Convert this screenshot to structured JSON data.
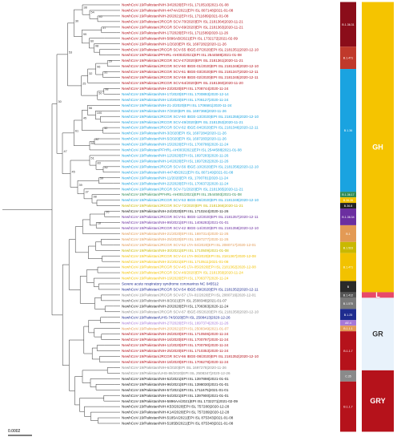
{
  "figure": {
    "scale_bar_label": "0.0002"
  },
  "colors": {
    "red": "#b5121b",
    "blue": "#1aa3e0",
    "navy": "#1f2c8f",
    "orange": "#e39a55",
    "gold": "#f2c200",
    "magenta": "#c23fb5",
    "black": "#1a1a1a",
    "gray": "#888888",
    "darkred": "#8b0d1a",
    "greenband": "#2e8b57"
  },
  "clade_bar": [
    {
      "label": "B.1.36.31",
      "start": 0,
      "end": 8,
      "color": "#8b0d1a"
    },
    {
      "label": "B.1.471",
      "start": 8,
      "end": 12,
      "color": "#c0392b"
    },
    {
      "label": "B.1.36",
      "start": 12,
      "end": 34,
      "color": "#1aa3e0"
    },
    {
      "label": "B.1.36.17",
      "start": 34,
      "end": 35,
      "color": "#2e8b57"
    },
    {
      "label": "B.36.26",
      "start": 35,
      "end": 36,
      "color": "#f2c200"
    },
    {
      "label": "B.36.8",
      "start": 36,
      "end": 37,
      "color": "#222222"
    },
    {
      "label": "B.1.36.34",
      "start": 37,
      "end": 40,
      "color": "#6b2fa0"
    },
    {
      "label": "B.1",
      "start": 40,
      "end": 43,
      "color": "#e39a55"
    },
    {
      "label": "B.1.523",
      "start": 43,
      "end": 45,
      "color": "#c9b800"
    },
    {
      "label": "B.1.471",
      "start": 45,
      "end": 50,
      "color": "#f2c200"
    },
    {
      "label": "B",
      "start": 50,
      "end": 52,
      "color": "#2a2a2a"
    },
    {
      "label": "B.1.412",
      "start": 52,
      "end": 53,
      "color": "#555555"
    },
    {
      "label": "B.1.575",
      "start": 53,
      "end": 55,
      "color": "#7a7a7a"
    },
    {
      "label": "B.1.25",
      "start": 55,
      "end": 57,
      "color": "#1f2c8f"
    },
    {
      "label": "AE.4",
      "start": 57,
      "end": 58,
      "color": "#a678d8"
    },
    {
      "label": "B.1.1.1",
      "start": 58,
      "end": 59,
      "color": "#e39a55"
    },
    {
      "label": "B.1.1.7",
      "start": 59,
      "end": 66,
      "color": "#b5121b"
    },
    {
      "label": "C.35",
      "start": 66,
      "end": 68,
      "color": "#8a8a8a"
    },
    {
      "label": "B.1.1.7",
      "start": 68,
      "end": 77,
      "color": "#b5121b"
    }
  ],
  "clade_groups": [
    {
      "label": "GH",
      "start": 0,
      "end": 52,
      "color": "#f5c400"
    },
    {
      "label": "L",
      "start": 52,
      "end": 53,
      "color": "#e84a6a"
    },
    {
      "label": "GR",
      "start": 53,
      "end": 66,
      "color": "#e8f2fb"
    },
    {
      "label": "GRY",
      "start": 66,
      "end": 77,
      "color": "#b5121b"
    }
  ],
  "leaves": [
    {
      "label": "NewhCoV-19/Pakistan/NIH-34/2020|EPI ISL 1710510|2021-01-08",
      "color": "#b5121b"
    },
    {
      "label": "NewhCoV-19/Pakistan/NIH-4474A/2021|EPI ISL 807148|2021-01-08",
      "color": "#b5121b"
    },
    {
      "label": "NewhCoV-19/Pakistan/NIH-26/2021|EPI ISL 1711689|2021-01-08",
      "color": "#b5121b"
    },
    {
      "label": "NewhCoV-19/Pakistan/JRCGR SCV-70/2020|EPI ISL 2181364|2020-11-21",
      "color": "#b5121b"
    },
    {
      "label": "NewhCoV-19/Pakistan/JRCGR SCV-69/2020|EPI ISL 2181363|2020-11-21",
      "color": "#b5121b"
    },
    {
      "label": "NewhCoV-19/Pakistan/NIH-17/2020|EPI ISL 1711589|2020-11-26",
      "color": "#b5121b"
    },
    {
      "label": "NewhCoV-19/Pakistan/NIH-5896AB/2021|EPI ISL 1732172|2021-02-09",
      "color": "#b5121b"
    },
    {
      "label": "NewhCoV-19/Pakistan/NIH-1/2020|EPI ISL 1697282|2020-11-26",
      "color": "#b5121b"
    },
    {
      "label": "NewhCoV-19/Pakistan/JRCGR SCV-55 IBGE-07/2020|EPI ISL 2181351|2020-12-10",
      "color": "#b5121b"
    },
    {
      "label": "NewhCoV-19/Pakistan/PFHRL-AH003/2021|EPI ISL 2544589|2021-01-08",
      "color": "#b5121b"
    },
    {
      "label": "NewhCoV-19/Pakistan/JRCGR SCV-47/2020|EPI ISL 2181361|2020-11-21",
      "color": "#b5121b"
    },
    {
      "label": "NewhCoV-19/Pakistan/JRCGR SCV-60 IBGE-01/2020|EPI ISL 2181348|2020-12-10",
      "color": "#b5121b"
    },
    {
      "label": "NewhCoV-19/Pakistan/JRCGR SCV-61 IBGE-03/2020|EPI ISL 2181347|2020-12-11",
      "color": "#b5121b"
    },
    {
      "label": "NewhCoV-19/Pakistan/JRCGR SCV-59 IBGE-02/2020|EPI ISL 2181345|2020-12-11",
      "color": "#b5121b"
    },
    {
      "label": "NewhCoV-19/Pakistan/JRCGR SCV-64/2020|EPI ISL 2181360|2020-11-20",
      "color": "#b5121b"
    },
    {
      "label": "NewhCoV-19/Pakistan/NIH-23/2020|EPI ISL 1708744|2020-11-24",
      "color": "#b5121b"
    },
    {
      "label": "NewhCoV-19/Pakistan/NIH-17/2020|EPI ISL 1700893|2020-12-14",
      "color": "#1aa3e0"
    },
    {
      "label": "NewhCoV-19/Pakistan/NIH-13/2020|EPI ISL 1706127|2020-11-24",
      "color": "#1aa3e0"
    },
    {
      "label": "NewhCoV-19/Pakistan/NIH-21-2/2020|EPI ISL 1706581|2020-11-24",
      "color": "#1aa3e0"
    },
    {
      "label": "NewhCoV-19/Pakistan/NIH-7/2020|EPI ISL 1697368|2020-11-26",
      "color": "#1aa3e0"
    },
    {
      "label": "NewhCoV-19/Pakistan/JRCGR SCV-60 IBGE-13/2020|EPI ISL 2181355|2020-12-10",
      "color": "#1aa3e0"
    },
    {
      "label": "NewhCoV-19/Pakistan/JRCGR SCV-49/2020|EPI ISL 2181353|2020-11-21",
      "color": "#1aa3e0"
    },
    {
      "label": "NewhCoV-19/Pakistan/JRCGR SCV-62 IBGE-04/2020|EPI ISL 2181346|2020-12-11",
      "color": "#1aa3e0"
    },
    {
      "label": "NewhCoV-19/Pakistan/NIH-3/2020|EPI ISL 1697284|2020-11-26",
      "color": "#1aa3e0"
    },
    {
      "label": "NewhCoV-19/Pakistan/NIH-5/2020|EPI ISL 1697283|2020-11-26",
      "color": "#1aa3e0"
    },
    {
      "label": "NewhCoV-19/Pakistan/NIH-15/2020|EPI ISL 1700786|2020-11-24",
      "color": "#1aa3e0"
    },
    {
      "label": "NewhCoV-19/Pakistan/PFHRL-AH003/2021|EPI ISL 2544588|2021-01-08",
      "color": "#1aa3e0"
    },
    {
      "label": "NewhCoV-19/Pakistan/NIH-12/2020|EPI ISL 1697283|2020-11-26",
      "color": "#1aa3e0"
    },
    {
      "label": "NewhCoV-19/Pakistan/NIH-14/2020|EPI ISL 1697282|2020-11-26",
      "color": "#1aa3e0"
    },
    {
      "label": "NewhCoV-19/Pakistan/JRCGR SCV-56 IBGE-10/2020|EPI ISL 2181356|2020-12-10",
      "color": "#1aa3e0"
    },
    {
      "label": "NewhCoV-19/Pakistan/NIH-4474B/2021|EPI ISL 807149|2021-01-08",
      "color": "#1aa3e0"
    },
    {
      "label": "NewhCoV-19/Pakistan/NIH-11/2020|EPI ISL 1700781|2020-11-24",
      "color": "#1aa3e0"
    },
    {
      "label": "NewhCoV-19/Pakistan/NIH-22/2020|EPI ISL 1706372|2020-11-24",
      "color": "#1aa3e0"
    },
    {
      "label": "NewhCoV-19/Pakistan/JRCGR SCV-71/2020|EPI ISL 2181365|2020-11-21",
      "color": "#1aa3e0"
    },
    {
      "label": "NewhCoV-19/Pakistan/PFHRL-AH001/2021|EPI ISL 2544593|2021-01-08",
      "color": "#2e8b57"
    },
    {
      "label": "NewhCoV-19/Pakistan/JRCGR SCV-53 IBGE-06/2020|EPI ISL 2181349|2020-12-10",
      "color": "#1aa3e0"
    },
    {
      "label": "NewhCoV-19/Pakistan/JRCGR SCV-72/2020|EPI ISL 2181366|2020-11-21",
      "color": "#c9b800"
    },
    {
      "label": "NewhCoV-19/Pakistan/NIH-24/2020|EPI ISL 1710244|2020-11-26",
      "color": "#1a1a1a"
    },
    {
      "label": "NewhCoV-19/Pakistan/JRCGR SCV-51 IBGE-12/2020|EPI ISL 2181357|2020-12-11",
      "color": "#6b2fa0"
    },
    {
      "label": "NewhCoV-19/Pakistan/NIH-99/2021|EPI ISL 1406283|2021-01-01",
      "color": "#6b2fa0"
    },
    {
      "label": "NewhCoV-19/Pakistan/JRCGR SCV-42 IBGE-14/2020|EPI ISL 2181358|2020-12-10",
      "color": "#6b2fa0"
    },
    {
      "label": "NewhCoV-19/Pakistan/NIH-21/2020|EPI ISL 1697314|2020-11-26",
      "color": "#e39a55"
    },
    {
      "label": "NewhCoV-19/Pakistan/NIH-25/2020|EPI ISL 1697277|2020-11-26",
      "color": "#e39a55"
    },
    {
      "label": "NewhCoV-19/Pakistan/JRCGR SCV-52 LTA-04/2020|EPI ISL 2080717|2020-12-01",
      "color": "#e39a55"
    },
    {
      "label": "NewhCoV-19/Pakistan/NIH-30/2021|EPI ISL 1710509|2021-01-08",
      "color": "#c9b800"
    },
    {
      "label": "NewhCoV-19/Pakistan/JRCGR SCV-44 LTA-06/2020|EPI ISL 2181367|2020-12-08",
      "color": "#f2c200"
    },
    {
      "label": "NewhCoV-19/Pakistan/NIH-31/2021|EPI ISL 1710511|2021-01-08",
      "color": "#f2c200"
    },
    {
      "label": "NewhCoV-19/Pakistan/JRCGR SCV-45 LTA-05/2020|EPI ISL 2181362|2020-12-08",
      "color": "#f2c200"
    },
    {
      "label": "NewhCoV-19/Pakistan/JRCGR SCV-46/2020|EPI ISL 2181359|2020-11-24",
      "color": "#f2c200"
    },
    {
      "label": "NewhCoV-19/Pakistan/NIH-19/2020|EPI ISL 1706377|2020-11-24",
      "color": "#f2c200"
    },
    {
      "label": "Severe acute respiratory syndrome coronavirus NC 045512",
      "color": "#1f2c8f"
    },
    {
      "label": "NewhCoV-19/Pakistan/JRCGR SCV-54 IBGE-09/2020|EPI ISL 2181352|2020-12-11",
      "color": "#1f2c8f"
    },
    {
      "label": "NewhCoV-19/Pakistan/JRCGR SCV-57 LTA-01/2020|EPI ISL 2080716|2020-12-01",
      "color": "#888888"
    },
    {
      "label": "NewhCoV-19/Pakistan/NIH-8/2021|EPI ISL 2508348|2021-01-07",
      "color": "#555555"
    },
    {
      "label": "NewhCoV-19/Pakistan/NIH-20/2020|EPI ISL 1706363|2020-11-24",
      "color": "#1a1a1a"
    },
    {
      "label": "NewhCoV-19/Pakistan/JRCGR SCV-67 IBGE-05/2020|EPI ISL 2181350|2020-12-10",
      "color": "#888888"
    },
    {
      "label": "NewhCoV-19/Pakistan/UHS-74/2020|EPI ISL 2508413|2020-12-26",
      "color": "#1f2c8f"
    },
    {
      "label": "NewhCoV-19/Pakistan/NIH-27/2020|EPI ISL 1697374|2020-11-26",
      "color": "#a678d8"
    },
    {
      "label": "NewhCoV-19/Pakistan/NIH-20/2021|EPI ISL 2508349|2021-01-07",
      "color": "#e39a55"
    },
    {
      "label": "NewhCoV-19/Pakistan/NIH-26/2020|EPI ISL 1710506|2020-11-24",
      "color": "#b5121b"
    },
    {
      "label": "NewhCoV-19/Pakistan/NIH-16/2020|EPI ISL 1700797|2020-11-24",
      "color": "#b5121b"
    },
    {
      "label": "NewhCoV-19/Pakistan/NIH-12/2020|EPI ISL 1700790|2020-11-24",
      "color": "#b5121b"
    },
    {
      "label": "NewhCoV-19/Pakistan/NIH-25/2020|EPI ISL 1710353|2020-11-24",
      "color": "#b5121b"
    },
    {
      "label": "NewhCoV-19/Pakistan/JRCGR SCV-66 IBGE-08/2020|EPI ISL 2181352|2020-12-10",
      "color": "#b5121b"
    },
    {
      "label": "NewhCoV-19/Pakistan/NIH-18/2020|EPI ISL 1706278|2020-11-24",
      "color": "#b5121b"
    },
    {
      "label": "NewhCoV-19/Pakistan/NIH-6/2020|EPI ISL 1697278|2020-11-26",
      "color": "#888888"
    },
    {
      "label": "NewhCoV-19/Pakistan/UHS-86/2020|EPI ISL 2508347|2020-12-26",
      "color": "#888888"
    },
    {
      "label": "NewhCoV-19/Pakistan/NIH-52/2021|EPI ISL 1397898|2021-01-01",
      "color": "#1a1a1a"
    },
    {
      "label": "NewhCoV-19/Pakistan/NIH-96/2021|EPI ISL 1398030|2021-01-01",
      "color": "#1a1a1a"
    },
    {
      "label": "NewhCoV-19/Pakistan/NIH-57/2021|EPI ISL 1711675|2021-01-01",
      "color": "#1a1a1a"
    },
    {
      "label": "NewhCoV-19/Pakistan/NIH-54/2021|EPI ISL 1397900|2021-01-01",
      "color": "#1a1a1a"
    },
    {
      "label": "NewhCoV-19/Pakistan/NIH-5896AA/2021|EPI ISL 1732271|2021-02-09",
      "color": "#1a1a1a"
    },
    {
      "label": "NewhCoV-19/Pakistan/NIH-K53/2020|EPI ISL 757280|2020-12-28",
      "color": "#1a1a1a"
    },
    {
      "label": "NewhCoV-19/Pakistan/NIH-K14/2020|EPI ISL 757289|2020-12-28",
      "color": "#1a1a1a"
    },
    {
      "label": "NewhCoV-19/Pakistan/NIH-5185A/2021|EPI ISL 875343|2021-01-08",
      "color": "#1a1a1a"
    },
    {
      "label": "NewhCoV-19/Pakistan/NIH-5185B/2021|EPI ISL 875348|2021-01-08",
      "color": "#1a1a1a"
    }
  ],
  "bootstrap": [
    "40",
    "54",
    "38",
    "37",
    "98",
    "60",
    "99",
    "30",
    "29",
    "31",
    "96",
    "32",
    "98",
    "50",
    "25",
    "53",
    "100",
    "56",
    "32",
    "45",
    "87",
    "50",
    "61",
    "82",
    "83",
    "51",
    "59",
    "98",
    "37",
    "39",
    "45",
    "47",
    "30",
    "26",
    "18"
  ]
}
